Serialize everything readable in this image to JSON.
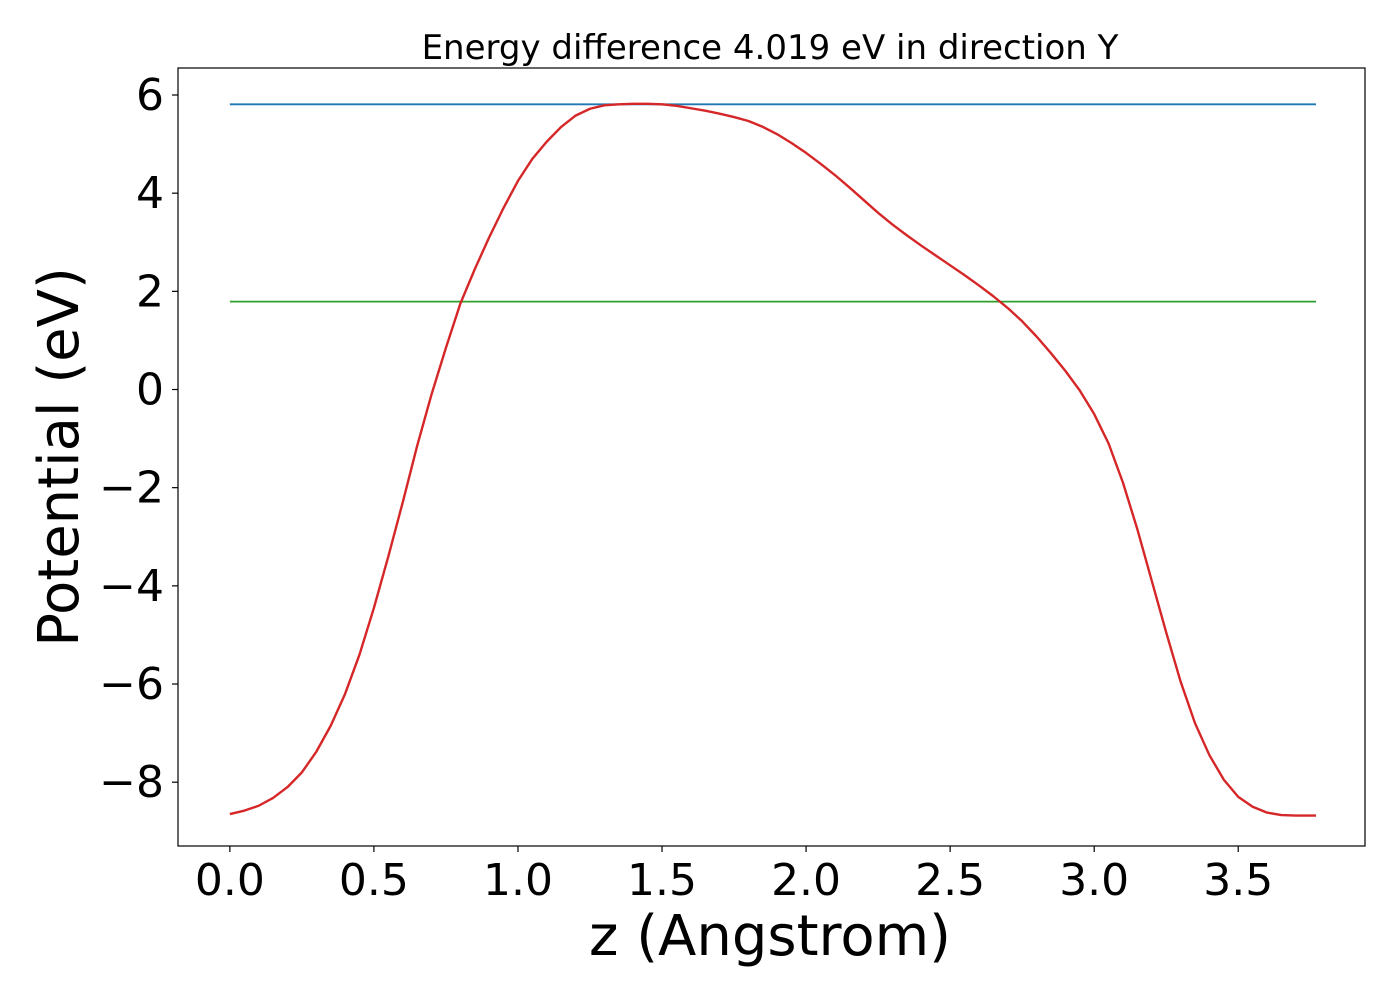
{
  "chart_data": {
    "type": "line",
    "title": "Energy difference 4.019 eV in direction Y",
    "xlabel": "z (Angstrom)",
    "ylabel": "Potential (eV)",
    "xlim": [
      -0.18,
      3.94
    ],
    "ylim": [
      -9.3,
      6.55
    ],
    "xticks": [
      0.0,
      0.5,
      1.0,
      1.5,
      2.0,
      2.5,
      3.0,
      3.5
    ],
    "xtick_labels": [
      "0.0",
      "0.5",
      "1.0",
      "1.5",
      "2.0",
      "2.5",
      "3.0",
      "3.5"
    ],
    "yticks": [
      -8,
      -6,
      -4,
      -2,
      0,
      2,
      4,
      6
    ],
    "ytick_labels": [
      "−8",
      "−6",
      "−4",
      "−2",
      "0",
      "2",
      "4",
      "6"
    ],
    "grid": false,
    "series": [
      {
        "color": "#1f77b4",
        "x": [
          0.0,
          3.77
        ],
        "y": [
          5.81,
          5.81
        ]
      },
      {
        "color": "#2ca02c",
        "x": [
          0.0,
          3.77
        ],
        "y": [
          1.79,
          1.79
        ]
      },
      {
        "color": "#d62728",
        "x": [
          0.0,
          0.05,
          0.1,
          0.15,
          0.2,
          0.25,
          0.3,
          0.35,
          0.4,
          0.45,
          0.5,
          0.55,
          0.6,
          0.65,
          0.7,
          0.75,
          0.8,
          0.85,
          0.9,
          0.95,
          1.0,
          1.05,
          1.1,
          1.15,
          1.2,
          1.25,
          1.3,
          1.35,
          1.4,
          1.45,
          1.5,
          1.55,
          1.6,
          1.65,
          1.7,
          1.75,
          1.8,
          1.85,
          1.9,
          1.95,
          2.0,
          2.05,
          2.1,
          2.15,
          2.2,
          2.25,
          2.3,
          2.35,
          2.4,
          2.45,
          2.5,
          2.55,
          2.6,
          2.65,
          2.7,
          2.75,
          2.8,
          2.85,
          2.9,
          2.95,
          3.0,
          3.05,
          3.1,
          3.15,
          3.2,
          3.25,
          3.3,
          3.35,
          3.4,
          3.45,
          3.5,
          3.55,
          3.6,
          3.65,
          3.7,
          3.77
        ],
        "y": [
          -8.65,
          -8.58,
          -8.48,
          -8.32,
          -8.1,
          -7.8,
          -7.38,
          -6.85,
          -6.2,
          -5.4,
          -4.45,
          -3.4,
          -2.3,
          -1.15,
          -0.1,
          0.85,
          1.75,
          2.45,
          3.1,
          3.7,
          4.25,
          4.7,
          5.05,
          5.35,
          5.58,
          5.72,
          5.79,
          5.81,
          5.82,
          5.82,
          5.81,
          5.78,
          5.73,
          5.68,
          5.62,
          5.55,
          5.47,
          5.35,
          5.2,
          5.02,
          4.82,
          4.6,
          4.37,
          4.12,
          3.86,
          3.6,
          3.36,
          3.14,
          2.93,
          2.73,
          2.53,
          2.33,
          2.12,
          1.9,
          1.66,
          1.39,
          1.08,
          0.74,
          0.38,
          -0.02,
          -0.5,
          -1.1,
          -1.9,
          -2.85,
          -3.9,
          -4.95,
          -5.95,
          -6.8,
          -7.45,
          -7.95,
          -8.3,
          -8.5,
          -8.62,
          -8.67,
          -8.68,
          -8.68
        ]
      }
    ]
  }
}
